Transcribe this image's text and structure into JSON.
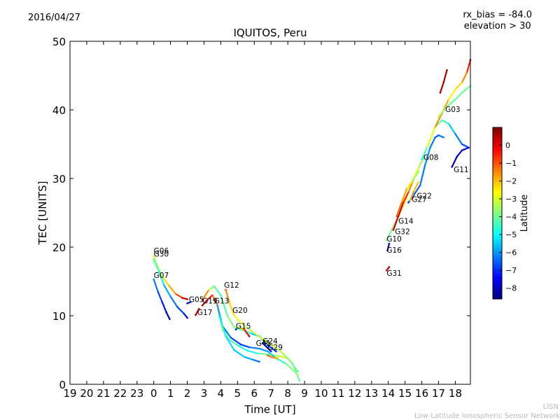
{
  "header": {
    "date": "2016/04/27",
    "rx_bias": "rx_bias = -84.0",
    "elevation": "elevation > 30"
  },
  "footer": {
    "credit_short": "LISN",
    "credit_long": "Low-Latitude Ionospheric Sensor Network"
  },
  "chart_data": {
    "type": "scatter",
    "title": "IQUITOS, Peru",
    "xlabel": "Time [UT]",
    "ylabel": "TEC [UNITS]",
    "x_ticks": [
      "19",
      "20",
      "21",
      "22",
      "23",
      "0",
      "1",
      "2",
      "3",
      "4",
      "5",
      "6",
      "7",
      "8",
      "9",
      "10",
      "11",
      "12",
      "13",
      "14",
      "15",
      "16",
      "17",
      "18"
    ],
    "xlim": [
      -5,
      18.9
    ],
    "ylim": [
      0,
      50
    ],
    "y_ticks": [
      0,
      10,
      20,
      30,
      40,
      50
    ],
    "grid": false,
    "colorbar": {
      "label": "Latitude",
      "range": [
        -8.6,
        1.0
      ],
      "ticks": [
        0,
        -1,
        -2,
        -3,
        -4,
        -5,
        -6,
        -7,
        -8
      ],
      "colormap": "jet"
    },
    "series": [
      {
        "name": "G06",
        "points": [
          [
            0,
            18.7,
            -3
          ],
          [
            0.2,
            17.3,
            -3.5
          ],
          [
            0.5,
            15.7,
            -2.5
          ],
          [
            0.9,
            14.4,
            -2
          ],
          [
            1.3,
            13.2,
            -1.5
          ],
          [
            1.7,
            12.6,
            0
          ],
          [
            2.0,
            12.4,
            0.5
          ]
        ]
      },
      {
        "name": "G30",
        "points": [
          [
            0,
            18.2,
            -4
          ],
          [
            0.3,
            16.5,
            -4.5
          ],
          [
            0.6,
            14.5,
            -5.5
          ],
          [
            1.0,
            12.8,
            -6
          ],
          [
            1.4,
            11.3,
            -6.5
          ],
          [
            1.8,
            10.3,
            -7
          ],
          [
            2.0,
            9.7,
            -8
          ]
        ]
      },
      {
        "name": "G07",
        "points": [
          [
            0,
            15.3,
            -6
          ],
          [
            0.25,
            13.5,
            -6.5
          ],
          [
            0.5,
            12.0,
            -7
          ],
          [
            0.75,
            10.5,
            -7.5
          ],
          [
            0.95,
            9.5,
            -8
          ]
        ]
      },
      {
        "name": "G05",
        "points": [
          [
            2.0,
            11.8,
            -8
          ],
          [
            2.2,
            12.0,
            -7
          ]
        ]
      },
      {
        "name": "G17",
        "points": [
          [
            2.5,
            10.1,
            0.5
          ],
          [
            2.7,
            11.0,
            0
          ]
        ]
      },
      {
        "name": "G19",
        "points": [
          [
            2.9,
            11.5,
            0.5
          ],
          [
            3.2,
            12.3,
            0
          ],
          [
            3.5,
            13.0,
            -1
          ],
          [
            3.8,
            11.5,
            -2
          ],
          [
            4.1,
            8.0,
            -3
          ],
          [
            4.5,
            6.5,
            -4
          ],
          [
            5.0,
            5.7,
            -4.5
          ],
          [
            5.6,
            4.9,
            -5
          ],
          [
            6.2,
            4.5,
            -4.5
          ],
          [
            7.0,
            4.3,
            -3.5
          ],
          [
            7.5,
            4.1,
            -3
          ],
          [
            8.0,
            3.8,
            -3
          ],
          [
            8.6,
            1.9,
            -4.5
          ]
        ]
      },
      {
        "name": "G13",
        "points": [
          [
            2.9,
            12.3,
            0
          ],
          [
            3.3,
            13.8,
            -3
          ],
          [
            3.6,
            14.3,
            -4
          ],
          [
            4.0,
            13.0,
            -4.5
          ],
          [
            4.4,
            10.0,
            -4
          ],
          [
            4.8,
            8.3,
            -3.5
          ],
          [
            5.3,
            7.9,
            -4
          ],
          [
            5.8,
            7.4,
            -5
          ],
          [
            6.3,
            7.0,
            -6
          ],
          [
            6.8,
            5.7,
            -6.5
          ],
          [
            7.3,
            4.8,
            -7
          ]
        ]
      },
      {
        "name": "G12",
        "points": [
          [
            4.3,
            13.8,
            -1
          ],
          [
            4.5,
            12.0,
            -2
          ],
          [
            4.8,
            10.0,
            -2.5
          ],
          [
            5.3,
            8.8,
            -3
          ],
          [
            5.8,
            7.8,
            -3.5
          ],
          [
            6.5,
            6.6,
            -3
          ],
          [
            7.2,
            5.5,
            -3
          ],
          [
            7.8,
            4.3,
            -3.5
          ],
          [
            8.3,
            3.0,
            -4
          ],
          [
            8.7,
            0.5,
            -4
          ]
        ]
      },
      {
        "name": "G20",
        "points": [
          [
            3.8,
            11.5,
            -6
          ],
          [
            4.1,
            8.5,
            -6
          ],
          [
            4.6,
            6.8,
            -6.5
          ],
          [
            5.2,
            5.8,
            -7
          ],
          [
            5.7,
            5.4,
            -6.5
          ],
          [
            6.3,
            5.2,
            -6
          ],
          [
            6.8,
            4.8,
            -6
          ],
          [
            7.3,
            3.8,
            -5
          ],
          [
            7.9,
            3.0,
            -4
          ],
          [
            8.6,
            1.4,
            -3.5
          ]
        ]
      },
      {
        "name": "G15",
        "points": [
          [
            4.9,
            8.0,
            -8
          ],
          [
            5.1,
            8.3,
            -3
          ],
          [
            5.4,
            8.0,
            -1
          ],
          [
            5.7,
            7.0,
            0.5
          ]
        ]
      },
      {
        "name": "G41",
        "points": [
          [
            3.9,
            10.0,
            -5
          ],
          [
            4.3,
            7.0,
            -5
          ],
          [
            4.8,
            5.0,
            -5.5
          ],
          [
            5.4,
            4.0,
            -5.5
          ],
          [
            5.9,
            3.6,
            -6
          ],
          [
            6.3,
            3.3,
            -6.5
          ]
        ]
      },
      {
        "name": "G24",
        "points": [
          [
            6.5,
            6.0,
            -8
          ],
          [
            6.8,
            5.3,
            -8
          ],
          [
            7.0,
            4.8,
            -7
          ]
        ]
      },
      {
        "name": "G29",
        "points": [
          [
            6.8,
            4.2,
            -1
          ],
          [
            7.1,
            3.9,
            -1.5
          ],
          [
            7.4,
            3.8,
            -2
          ]
        ]
      },
      {
        "name": "G10",
        "points": [
          [
            13.9,
            21.0,
            -4
          ],
          [
            14.2,
            22.5,
            -4
          ],
          [
            14.5,
            24.0,
            -3.5
          ],
          [
            14.9,
            26.0,
            -3
          ],
          [
            15.2,
            28.0,
            -2.5
          ],
          [
            15.5,
            30.0,
            -2.5
          ],
          [
            15.8,
            31.5,
            -3
          ],
          [
            16.1,
            33.0,
            -4
          ]
        ]
      },
      {
        "name": "G16",
        "points": [
          [
            13.95,
            19.5,
            -8
          ],
          [
            14.05,
            20.5,
            -7.5
          ]
        ]
      },
      {
        "name": "G31",
        "points": [
          [
            13.9,
            16.6,
            0
          ],
          [
            14.05,
            17.1,
            0.5
          ]
        ]
      },
      {
        "name": "G32",
        "points": [
          [
            14.3,
            22.5,
            0
          ],
          [
            14.6,
            24.5,
            0.5
          ],
          [
            14.9,
            26.5,
            0
          ],
          [
            15.2,
            28.0,
            -1
          ],
          [
            15.5,
            29.8,
            -2
          ]
        ]
      },
      {
        "name": "G14",
        "points": [
          [
            14.5,
            24.5,
            -1
          ],
          [
            14.8,
            26.5,
            -1.5
          ],
          [
            15.1,
            28.5,
            -2
          ],
          [
            15.4,
            29.5,
            -3
          ],
          [
            15.8,
            31.0,
            -4
          ]
        ]
      },
      {
        "name": "G27",
        "points": [
          [
            15.2,
            26.5,
            -7
          ],
          [
            15.5,
            27.5,
            -6.5
          ],
          [
            15.9,
            29.0,
            -6.5
          ],
          [
            16.2,
            32.0,
            -6
          ],
          [
            16.5,
            34.5,
            -6
          ],
          [
            16.8,
            36.0,
            -6.5
          ],
          [
            17.0,
            36.3,
            -6.5
          ],
          [
            17.3,
            36.0,
            -6
          ]
        ]
      },
      {
        "name": "G22",
        "points": [
          [
            15.3,
            26.8,
            -2
          ],
          [
            15.5,
            28.0,
            -1.5
          ],
          [
            15.8,
            29.5,
            -2.5
          ]
        ]
      },
      {
        "name": "G08",
        "points": [
          [
            16.0,
            32.8,
            -5
          ],
          [
            16.4,
            35.0,
            -4
          ],
          [
            16.8,
            37.5,
            -4
          ],
          [
            17.2,
            38.5,
            -4
          ],
          [
            17.6,
            38.0,
            -5
          ],
          [
            18.0,
            36.5,
            -6
          ],
          [
            18.4,
            35.0,
            -6.5
          ],
          [
            18.8,
            34.5,
            -7
          ]
        ]
      },
      {
        "name": "G03",
        "points": [
          [
            16.3,
            34.5,
            -3.5
          ],
          [
            16.8,
            37.5,
            -2
          ],
          [
            17.2,
            39.5,
            -1
          ],
          [
            17.6,
            41.5,
            -2.5
          ],
          [
            18.0,
            43.0,
            -2.5
          ],
          [
            18.4,
            44.0,
            -2
          ],
          [
            18.7,
            45.5,
            -1
          ],
          [
            18.9,
            47.3,
            0
          ]
        ]
      },
      {
        "name": "G11",
        "points": [
          [
            17.8,
            31.7,
            -8
          ],
          [
            18.1,
            33.2,
            -8
          ],
          [
            18.4,
            34.1,
            -7.5
          ],
          [
            18.8,
            34.5,
            -8
          ]
        ]
      },
      {
        "name": "",
        "points": [
          [
            17.0,
            39.0,
            -3
          ],
          [
            17.5,
            40.5,
            -4
          ],
          [
            18.0,
            41.5,
            -4
          ],
          [
            18.4,
            42.5,
            -4
          ],
          [
            18.9,
            43.5,
            -4
          ]
        ]
      },
      {
        "name": "",
        "points": [
          [
            17.1,
            42.5,
            0.5
          ],
          [
            17.3,
            44.0,
            0.5
          ],
          [
            17.5,
            45.8,
            0.5
          ]
        ]
      }
    ],
    "labels": [
      {
        "text": "G06",
        "x": 0.0,
        "y": 19.1
      },
      {
        "text": "G30",
        "x": 0.0,
        "y": 18.6
      },
      {
        "text": "G07",
        "x": 0.0,
        "y": 15.5
      },
      {
        "text": "G05",
        "x": 2.1,
        "y": 12.0
      },
      {
        "text": "G19",
        "x": 2.9,
        "y": 11.8
      },
      {
        "text": "G13",
        "x": 3.6,
        "y": 11.8
      },
      {
        "text": "G17",
        "x": 2.6,
        "y": 10.1
      },
      {
        "text": "G12",
        "x": 4.2,
        "y": 14.1
      },
      {
        "text": "G20",
        "x": 4.7,
        "y": 10.4
      },
      {
        "text": "G15",
        "x": 4.9,
        "y": 8.1
      },
      {
        "text": "G24",
        "x": 6.5,
        "y": 5.9
      },
      {
        "text": "G41",
        "x": 6.1,
        "y": 5.6
      },
      {
        "text": "G29",
        "x": 6.8,
        "y": 5.0
      },
      {
        "text": "G03",
        "x": 17.4,
        "y": 39.7
      },
      {
        "text": "G08",
        "x": 16.1,
        "y": 32.7
      },
      {
        "text": "G11",
        "x": 17.9,
        "y": 30.9
      },
      {
        "text": "G22",
        "x": 15.7,
        "y": 27.1
      },
      {
        "text": "G27",
        "x": 15.4,
        "y": 26.6
      },
      {
        "text": "G14",
        "x": 14.6,
        "y": 23.4
      },
      {
        "text": "G32",
        "x": 14.4,
        "y": 21.9
      },
      {
        "text": "G10",
        "x": 13.9,
        "y": 20.8
      },
      {
        "text": "G16",
        "x": 13.9,
        "y": 19.2
      },
      {
        "text": "G31",
        "x": 13.9,
        "y": 15.8
      }
    ]
  }
}
